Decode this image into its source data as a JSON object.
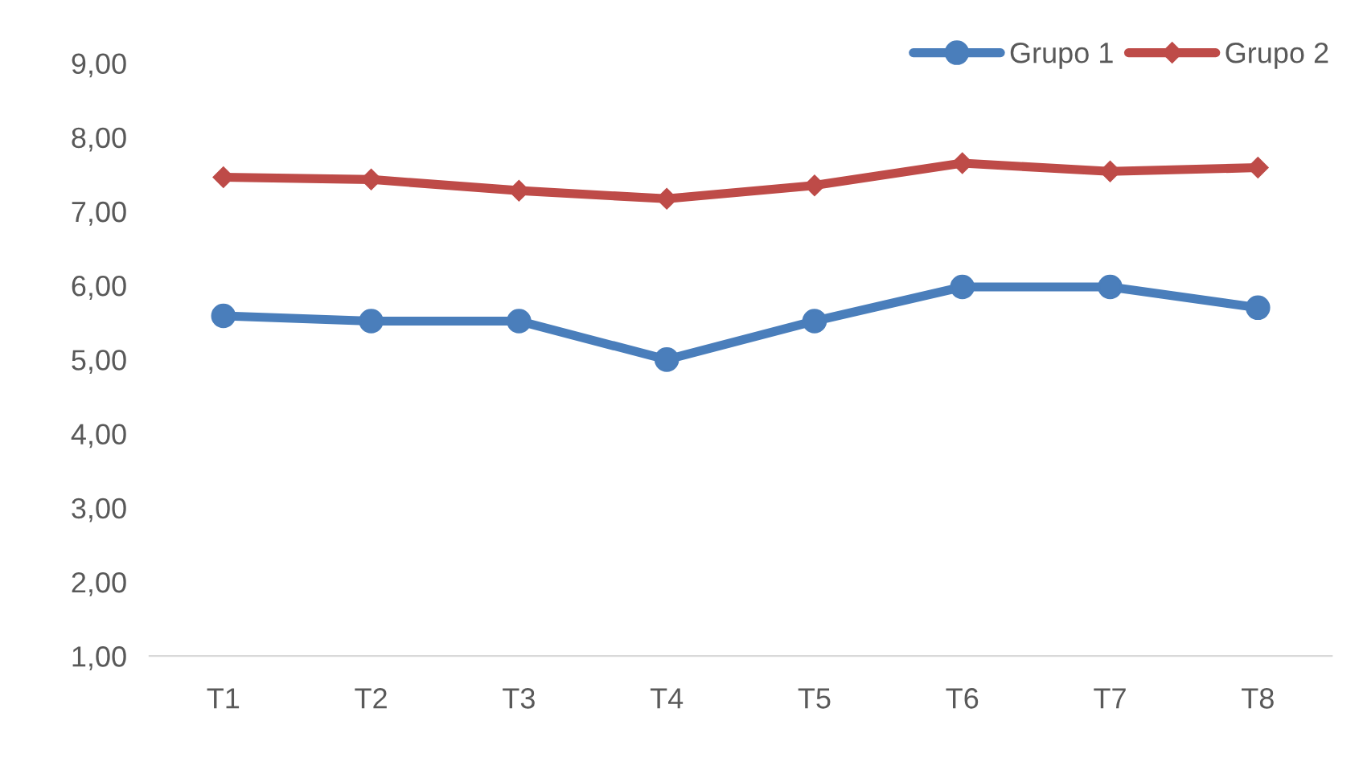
{
  "chart_data": {
    "type": "line",
    "categories": [
      "T1",
      "T2",
      "T3",
      "T4",
      "T5",
      "T6",
      "T7",
      "T8"
    ],
    "series": [
      {
        "name": "Grupo 1",
        "color": "#4a7ebb",
        "marker": "circle",
        "values": [
          5.59,
          5.52,
          5.52,
          5.0,
          5.52,
          5.98,
          5.98,
          5.7
        ]
      },
      {
        "name": "Grupo 2",
        "color": "#be4b48",
        "marker": "diamond",
        "values": [
          7.46,
          7.43,
          7.28,
          7.17,
          7.35,
          7.65,
          7.54,
          7.59
        ]
      }
    ],
    "ylim": [
      1,
      9
    ],
    "yticks": [
      {
        "value": 1,
        "label": "1,00"
      },
      {
        "value": 2,
        "label": "2,00"
      },
      {
        "value": 3,
        "label": "3,00"
      },
      {
        "value": 4,
        "label": "4,00"
      },
      {
        "value": 5,
        "label": "5,00"
      },
      {
        "value": 6,
        "label": "6,00"
      },
      {
        "value": 7,
        "label": "7,00"
      },
      {
        "value": 8,
        "label": "8,00"
      },
      {
        "value": 9,
        "label": "9,00"
      }
    ],
    "grid": false,
    "legend": "top right",
    "line_style": "solid"
  }
}
